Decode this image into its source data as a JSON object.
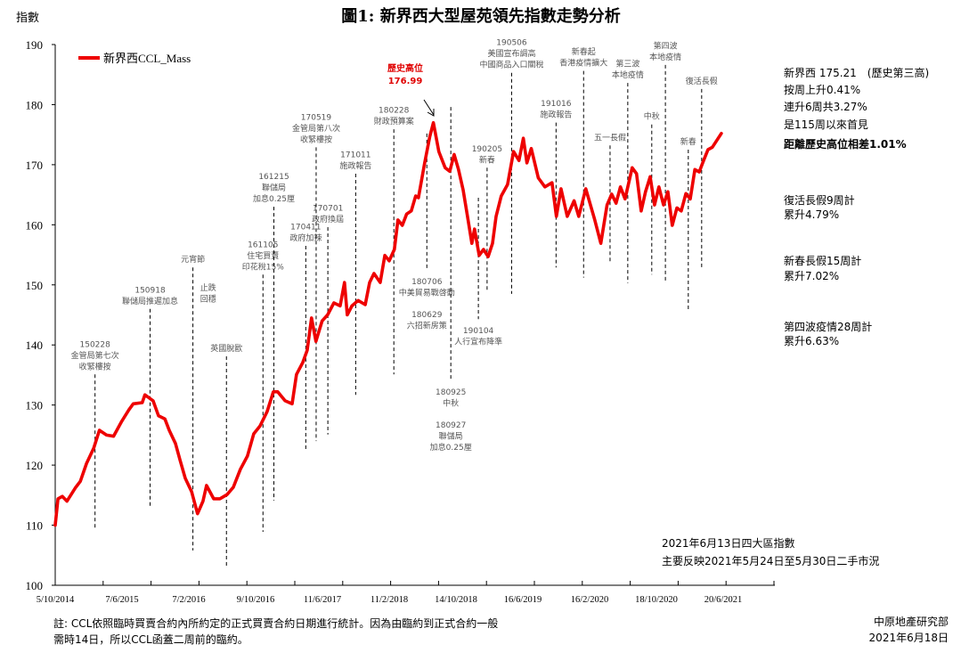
{
  "title": "圖1: 新界西大型屋苑領先指數走勢分析",
  "colors": {
    "series": "#ee0000",
    "annotation_line": "#000000",
    "annotation_text": "#555555",
    "peak_label": "#e00000"
  },
  "chart_data": {
    "type": "line",
    "ylabel": "指數",
    "ylim": [
      100,
      190
    ],
    "yticks": [
      "100",
      "110",
      "120",
      "130",
      "140",
      "150",
      "160",
      "170",
      "180",
      "190"
    ],
    "xlabel": "",
    "xticks": [
      "5/10/2014",
      "7/6/2015",
      "7/2/2016",
      "9/10/2016",
      "11/6/2017",
      "11/2/2018",
      "14/10/2018",
      "16/6/2019",
      "16/2/2020",
      "18/10/2020",
      "20/6/2021"
    ],
    "grid": false,
    "legend_position": "top-left",
    "series": [
      {
        "name": "新界西CCL_Mass",
        "points": [
          [
            "2014-10-05",
            110.0
          ],
          [
            "2014-10-15",
            114.4
          ],
          [
            "2014-10-31",
            114.8
          ],
          [
            "2014-11-17",
            114.0
          ],
          [
            "2014-12-19",
            116.3
          ],
          [
            "2015-01-05",
            117.3
          ],
          [
            "2015-01-28",
            120.3
          ],
          [
            "2015-02-23",
            122.8
          ],
          [
            "2015-03-16",
            125.8
          ],
          [
            "2015-04-11",
            125.0
          ],
          [
            "2015-05-07",
            124.8
          ],
          [
            "2015-06-06",
            127.3
          ],
          [
            "2015-07-02",
            129.2
          ],
          [
            "2015-07-18",
            130.2
          ],
          [
            "2015-08-20",
            130.4
          ],
          [
            "2015-08-30",
            131.7
          ],
          [
            "2015-09-29",
            130.7
          ],
          [
            "2015-10-19",
            128.2
          ],
          [
            "2015-11-11",
            127.7
          ],
          [
            "2015-11-27",
            125.8
          ],
          [
            "2015-12-20",
            123.6
          ],
          [
            "2016-01-06",
            120.8
          ],
          [
            "2016-01-25",
            117.8
          ],
          [
            "2016-02-17",
            115.6
          ],
          [
            "2016-03-10",
            111.9
          ],
          [
            "2016-03-30",
            114.0
          ],
          [
            "2016-04-12",
            116.6
          ],
          [
            "2016-05-08",
            114.4
          ],
          [
            "2016-05-31",
            114.4
          ],
          [
            "2016-06-26",
            115.1
          ],
          [
            "2016-07-19",
            116.3
          ],
          [
            "2016-08-14",
            119.3
          ],
          [
            "2016-09-09",
            121.5
          ],
          [
            "2016-10-02",
            125.2
          ],
          [
            "2016-10-25",
            126.5
          ],
          [
            "2016-11-20",
            128.9
          ],
          [
            "2016-12-13",
            132.2
          ],
          [
            "2016-12-29",
            132.2
          ],
          [
            "2017-01-25",
            130.7
          ],
          [
            "2017-02-20",
            130.2
          ],
          [
            "2017-03-08",
            135.1
          ],
          [
            "2017-03-31",
            137.1
          ],
          [
            "2017-04-16",
            139.1
          ],
          [
            "2017-05-02",
            144.5
          ],
          [
            "2017-05-18",
            140.6
          ],
          [
            "2017-06-10",
            144.0
          ],
          [
            "2017-06-30",
            145.0
          ],
          [
            "2017-07-23",
            147.0
          ],
          [
            "2017-08-15",
            146.5
          ],
          [
            "2017-08-31",
            150.4
          ],
          [
            "2017-09-10",
            145.0
          ],
          [
            "2017-09-27",
            146.5
          ],
          [
            "2017-10-20",
            147.4
          ],
          [
            "2017-11-15",
            146.7
          ],
          [
            "2017-12-01",
            150.4
          ],
          [
            "2017-12-17",
            151.9
          ],
          [
            "2018-01-09",
            150.4
          ],
          [
            "2018-01-26",
            154.9
          ],
          [
            "2018-02-11",
            154.0
          ],
          [
            "2018-03-02",
            155.9
          ],
          [
            "2018-03-15",
            160.8
          ],
          [
            "2018-03-31",
            159.9
          ],
          [
            "2018-04-16",
            161.8
          ],
          [
            "2018-05-03",
            162.3
          ],
          [
            "2018-05-19",
            164.8
          ],
          [
            "2018-05-29",
            164.5
          ],
          [
            "2018-06-21",
            170.3
          ],
          [
            "2018-07-10",
            174.7
          ],
          [
            "2018-07-23",
            176.99
          ],
          [
            "2018-08-12",
            172.2
          ],
          [
            "2018-09-04",
            169.5
          ],
          [
            "2018-09-21",
            168.9
          ],
          [
            "2018-10-07",
            171.7
          ],
          [
            "2018-10-23",
            169.2
          ],
          [
            "2018-11-09",
            165.8
          ],
          [
            "2018-11-25",
            161.4
          ],
          [
            "2018-12-11",
            156.9
          ],
          [
            "2018-12-21",
            159.3
          ],
          [
            "2019-01-07",
            154.9
          ],
          [
            "2019-01-23",
            155.9
          ],
          [
            "2019-02-09",
            154.7
          ],
          [
            "2019-02-25",
            156.9
          ],
          [
            "2019-03-10",
            161.4
          ],
          [
            "2019-03-29",
            164.8
          ],
          [
            "2019-04-21",
            166.7
          ],
          [
            "2019-05-13",
            172.2
          ],
          [
            "2019-06-02",
            170.7
          ],
          [
            "2019-06-18",
            174.4
          ],
          [
            "2019-07-01",
            170.3
          ],
          [
            "2019-07-17",
            172.7
          ],
          [
            "2019-08-12",
            167.8
          ],
          [
            "2019-09-05",
            166.3
          ],
          [
            "2019-10-01",
            167.0
          ],
          [
            "2019-10-17",
            161.4
          ],
          [
            "2019-11-03",
            166.0
          ],
          [
            "2019-11-26",
            161.4
          ],
          [
            "2019-12-21",
            164.0
          ],
          [
            "2020-01-07",
            161.4
          ],
          [
            "2020-02-02",
            166.0
          ],
          [
            "2020-03-06",
            160.8
          ],
          [
            "2020-03-28",
            156.9
          ],
          [
            "2020-04-20",
            163.3
          ],
          [
            "2020-05-07",
            165.1
          ],
          [
            "2020-05-23",
            163.6
          ],
          [
            "2020-06-08",
            166.3
          ],
          [
            "2020-06-25",
            164.3
          ],
          [
            "2020-07-21",
            169.5
          ],
          [
            "2020-08-06",
            168.5
          ],
          [
            "2020-08-23",
            162.3
          ],
          [
            "2020-09-08",
            165.5
          ],
          [
            "2020-09-25",
            168.0
          ],
          [
            "2020-10-11",
            163.3
          ],
          [
            "2020-10-27",
            166.3
          ],
          [
            "2020-11-13",
            163.3
          ],
          [
            "2020-11-29",
            165.5
          ],
          [
            "2020-12-15",
            159.9
          ],
          [
            "2021-01-01",
            162.8
          ],
          [
            "2021-01-17",
            162.3
          ],
          [
            "2021-02-03",
            165.2
          ],
          [
            "2021-02-19",
            164.3
          ],
          [
            "2021-03-08",
            169.2
          ],
          [
            "2021-03-24",
            168.8
          ],
          [
            "2021-04-09",
            170.7
          ],
          [
            "2021-04-25",
            172.5
          ],
          [
            "2021-05-11",
            172.9
          ],
          [
            "2021-06-13",
            175.21
          ]
        ]
      }
    ],
    "peak": {
      "label": "歷史高位",
      "value_label": "176.99",
      "date": "2018-07-23",
      "value": 176.99
    },
    "annotations": [
      {
        "date": "2015-02-28",
        "line": [
          135.1,
          109.5
        ],
        "pos": "above",
        "blocks": [
          [
            "150228",
            "金管局第七次",
            "收緊樓按"
          ]
        ]
      },
      {
        "date": "2015-09-18",
        "line": [
          146.0,
          112.9
        ],
        "pos": "above",
        "blocks": [
          [
            "150918",
            "聯儲局推遲加息"
          ]
        ]
      },
      {
        "date": "2016-02-22",
        "line": [
          152.9,
          105.8
        ],
        "pos": "above",
        "blocks": [
          [
            "元宵節"
          ]
        ]
      },
      {
        "date": "2016-04-18",
        "line": null,
        "label_value": 146.3,
        "pos": "above",
        "blocks": [
          [
            "止跌",
            "回穩"
          ]
        ]
      },
      {
        "date": "2016-06-24",
        "line": [
          138.1,
          103.0
        ],
        "pos": "above",
        "blocks": [
          [
            "英國脫歐"
          ]
        ]
      },
      {
        "date": "2016-11-05",
        "line": [
          151.7,
          108.9
        ],
        "pos": "above",
        "blocks": [
          [
            "161105",
            "住宅買賣",
            "印花稅15%"
          ]
        ]
      },
      {
        "date": "2016-12-15",
        "line": [
          163.0,
          114.1
        ],
        "pos": "above",
        "blocks": [
          [
            "161215",
            "聯儲局",
            "加息0.25厘"
          ]
        ]
      },
      {
        "date": "2017-04-11",
        "line": [
          156.5,
          122.5
        ],
        "pos": "above",
        "blocks": [
          [
            "170411",
            "政府加辣"
          ]
        ]
      },
      {
        "date": "2017-05-19",
        "line": [
          172.9,
          124.0
        ],
        "pos": "above",
        "blocks": [
          [
            "170519",
            "金管局第八次",
            "收緊樓按"
          ]
        ]
      },
      {
        "date": "2017-07-01",
        "line": [
          159.6,
          125.1
        ],
        "pos": "above",
        "blocks": [
          [
            "170701",
            "政府換屆"
          ]
        ]
      },
      {
        "date": "2017-10-11",
        "line": [
          168.5,
          131.7
        ],
        "pos": "above",
        "blocks": [
          [
            "171011",
            "施政報告"
          ]
        ]
      },
      {
        "date": "2018-02-28",
        "line": [
          175.9,
          135.1
        ],
        "pos": "above",
        "blocks": [
          [
            "180228",
            "財政預算案"
          ]
        ]
      },
      {
        "date": "2018-06-29",
        "line": [
          175.2,
          152.5
        ],
        "pos": "below",
        "blocks": [
          [
            "180706",
            "中美貿易戰啓動"
          ],
          [
            "180629",
            "六招新房策"
          ]
        ]
      },
      {
        "date": "2018-09-25",
        "line": [
          179.6,
          134.1
        ],
        "pos": "below",
        "blocks": [
          [
            "180925",
            "中秋"
          ],
          [
            "180927",
            "聯儲局",
            "加息0.25厘"
          ]
        ]
      },
      {
        "date": "2019-01-04",
        "line": [
          164.5,
          144.3
        ],
        "pos": "below",
        "blocks": [
          [
            "190104",
            "人行宣布降準"
          ]
        ]
      },
      {
        "date": "2019-02-05",
        "line": [
          169.5,
          149.1
        ],
        "pos": "above",
        "blocks": [
          [
            "190205",
            "新春"
          ]
        ]
      },
      {
        "date": "2019-05-06",
        "line": [
          185.3,
          148.5
        ],
        "pos": "above",
        "blocks": [
          [
            "190506",
            "美國宣布調高",
            "中國商品入口關稅"
          ]
        ]
      },
      {
        "date": "2019-10-16",
        "line": [
          177.0,
          152.9
        ],
        "pos": "above",
        "blocks": [
          [
            "191016",
            "施政報告"
          ]
        ]
      },
      {
        "date": "2020-01-25",
        "line": [
          185.6,
          151.2
        ],
        "pos": "above",
        "blocks": [
          [
            "新春起",
            "香港疫情擴大"
          ]
        ]
      },
      {
        "date": "2020-05-01",
        "line": [
          173.2,
          153.7
        ],
        "pos": "above",
        "blocks": [
          [
            "五一長假"
          ]
        ]
      },
      {
        "date": "2020-07-05",
        "line": [
          183.6,
          150.3
        ],
        "pos": "above",
        "blocks": [
          [
            "第三波",
            "本地疫情"
          ]
        ]
      },
      {
        "date": "2020-10-01",
        "line": [
          176.7,
          151.7
        ],
        "pos": "above",
        "blocks": [
          [
            "中秋"
          ]
        ]
      },
      {
        "date": "2020-11-20",
        "line": [
          186.6,
          150.3
        ],
        "pos": "above",
        "blocks": [
          [
            "第四波",
            "本地疫情"
          ]
        ]
      },
      {
        "date": "2021-02-12",
        "line": [
          172.5,
          145.8
        ],
        "pos": "above",
        "blocks": [
          [
            "新春"
          ]
        ]
      },
      {
        "date": "2021-04-02",
        "line": [
          182.6,
          152.9
        ],
        "pos": "above",
        "blocks": [
          [
            "復活長假"
          ]
        ]
      }
    ]
  },
  "side_notes": [
    {
      "text": "新界西 175.21　(歷史第三高)",
      "bold": false
    },
    {
      "text": "按周上升0.41%",
      "bold": false
    },
    {
      "text": "連升6周共3.27%",
      "bold": false
    },
    {
      "text": "是115周以來首見",
      "bold": false
    },
    {
      "text": "距離歷史高位相差1.01%",
      "bold": true
    },
    {
      "text": "復活長假9周計",
      "bold": false
    },
    {
      "text": "累升4.79%",
      "bold": false
    },
    {
      "text": "新春長假15周計",
      "bold": false
    },
    {
      "text": "累升7.02%",
      "bold": false
    },
    {
      "text": "第四波疫情28周計",
      "bold": false
    },
    {
      "text": "累升6.63%",
      "bold": false
    }
  ],
  "index_note": [
    "2021年6月13日四大區指數",
    "主要反映2021年5月24日至5月30日二手市況"
  ],
  "footnote": [
    "註: CCL依照臨時買賣合約內所約定的正式買賣合約日期進行統計。因為由臨約到正式合約一般",
    "需時14日，所以CCL函蓋二周前的臨約。"
  ],
  "source": [
    "中原地產研究部",
    "2021年6月18日"
  ]
}
